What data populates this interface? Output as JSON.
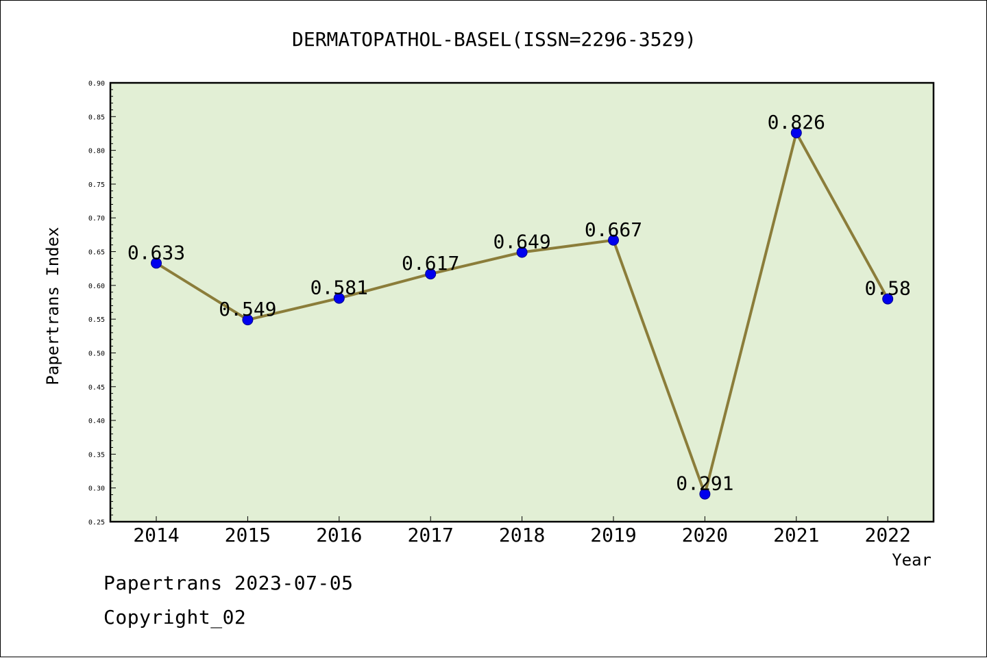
{
  "chart_data": {
    "type": "line",
    "title": "DERMATOPATHOL-BASEL(ISSN=2296-3529)",
    "xlabel": "Year",
    "ylabel": "Papertrans Index",
    "categories": [
      "2014",
      "2015",
      "2016",
      "2017",
      "2018",
      "2019",
      "2020",
      "2021",
      "2022"
    ],
    "values": [
      0.633,
      0.549,
      0.581,
      0.617,
      0.649,
      0.667,
      0.291,
      0.826,
      0.58
    ],
    "data_labels": [
      "0.633",
      "0.549",
      "0.581",
      "0.617",
      "0.649",
      "0.667",
      "0.291",
      "0.826",
      "0.58"
    ],
    "ylim": [
      0.25,
      0.9
    ],
    "y_ticks": [
      "0.25",
      "0.30",
      "0.35",
      "0.40",
      "0.45",
      "0.50",
      "0.55",
      "0.60",
      "0.65",
      "0.70",
      "0.75",
      "0.80",
      "0.85",
      "0.90"
    ],
    "grid": false,
    "colors": {
      "plot_background": "#e2efd5",
      "line": "#8b7d3a",
      "marker": "#0000ee"
    }
  },
  "footer": {
    "line1": "Papertrans 2023-07-05",
    "line2": "Copyright_02"
  }
}
